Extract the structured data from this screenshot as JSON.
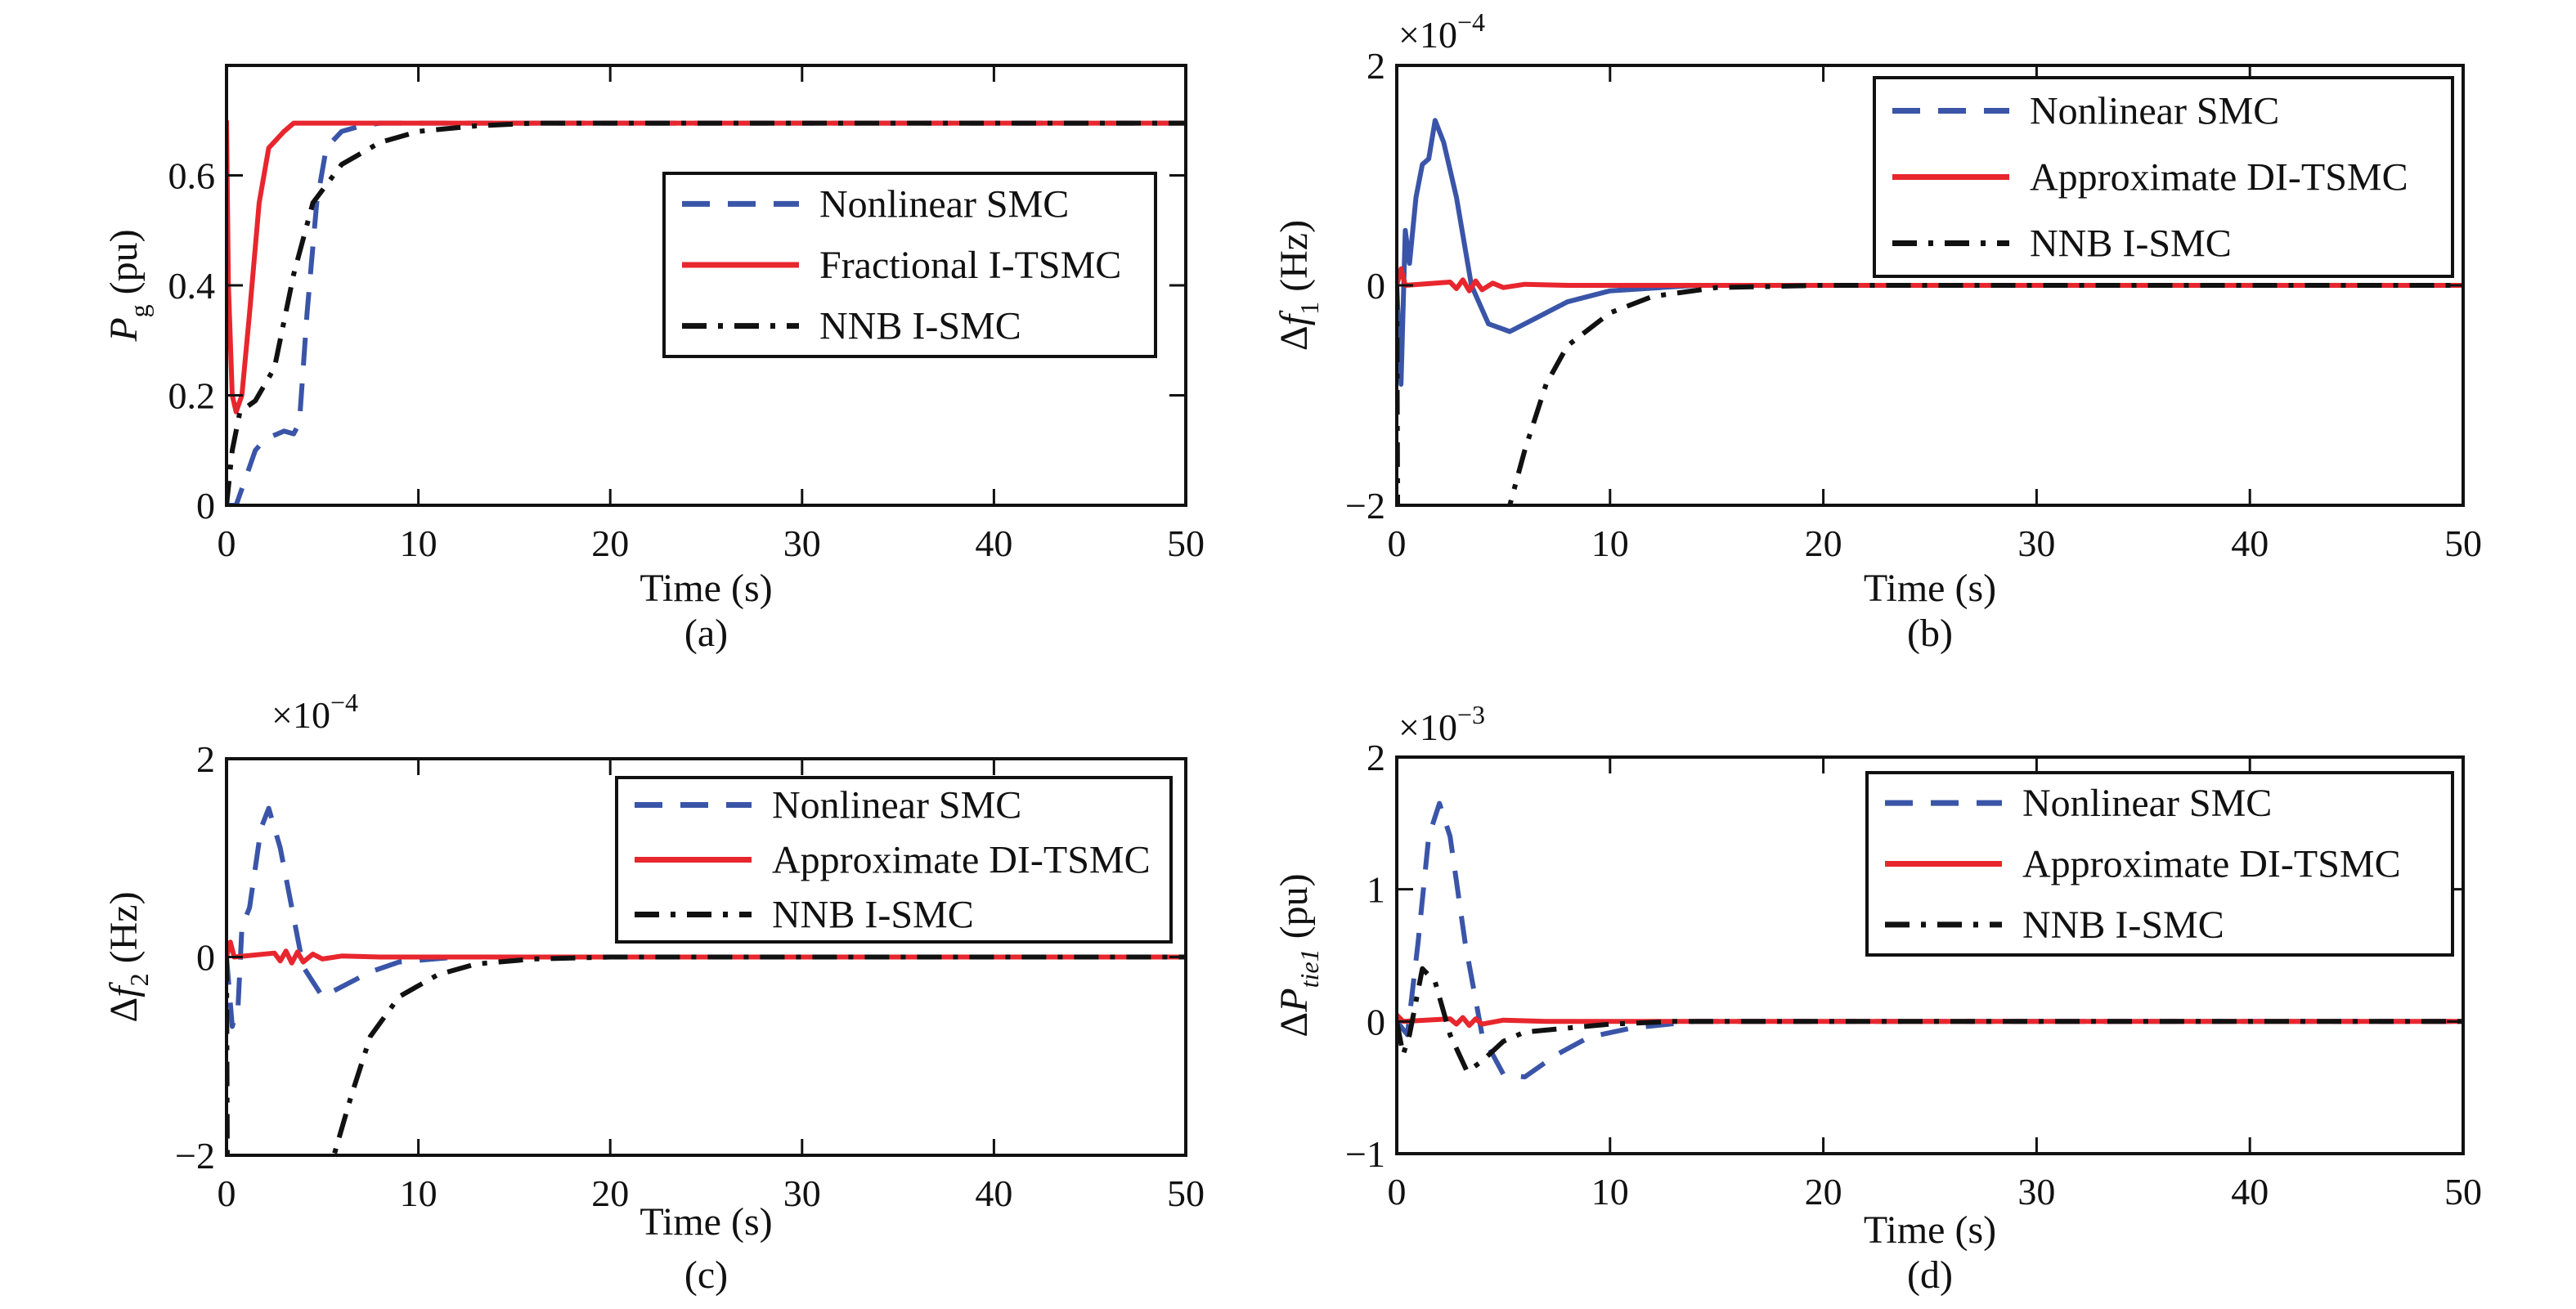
{
  "colors": {
    "nonlinear": "#3a55a8",
    "approx": "#e8262e",
    "nnb": "#111111"
  },
  "chart_data": [
    {
      "id": "a",
      "type": "line",
      "caption": "(a)",
      "xlabel": "Time (s)",
      "ylabel": {
        "base": "P",
        "sub": "g",
        "unit": " (pu)",
        "prefix": ""
      },
      "exponent": null,
      "xlim": [
        0,
        50
      ],
      "ylim": [
        0,
        0.8
      ],
      "xticks": [
        0,
        10,
        20,
        30,
        40,
        50
      ],
      "yticks": [
        0,
        0.2,
        0.4,
        0.6
      ],
      "legend": "top-right",
      "series": [
        {
          "name": "Nonlinear SMC",
          "style": "dashed",
          "color_key": "nonlinear",
          "points": [
            [
              0,
              0
            ],
            [
              0.5,
              0
            ],
            [
              1,
              0.05
            ],
            [
              1.5,
              0.1
            ],
            [
              2,
              0.12
            ],
            [
              3,
              0.135
            ],
            [
              3.5,
              0.13
            ],
            [
              3.8,
              0.15
            ],
            [
              4.2,
              0.35
            ],
            [
              4.7,
              0.55
            ],
            [
              5.2,
              0.65
            ],
            [
              6,
              0.68
            ],
            [
              7,
              0.69
            ],
            [
              8,
              0.695
            ],
            [
              50,
              0.695
            ]
          ]
        },
        {
          "name": "Fractional I-TSMC",
          "style": "solid",
          "color_key": "approx",
          "points": [
            [
              0,
              0.7
            ],
            [
              0.1,
              0.4
            ],
            [
              0.3,
              0.2
            ],
            [
              0.5,
              0.17
            ],
            [
              0.8,
              0.2
            ],
            [
              1.2,
              0.35
            ],
            [
              1.7,
              0.55
            ],
            [
              2.2,
              0.65
            ],
            [
              3,
              0.68
            ],
            [
              3.5,
              0.695
            ],
            [
              50,
              0.695
            ]
          ]
        },
        {
          "name": "NNB I-SMC",
          "style": "dashdot",
          "color_key": "nnb",
          "points": [
            [
              0,
              0
            ],
            [
              0.3,
              0.1
            ],
            [
              0.7,
              0.17
            ],
            [
              1.5,
              0.19
            ],
            [
              2.5,
              0.25
            ],
            [
              3.5,
              0.42
            ],
            [
              4.5,
              0.55
            ],
            [
              6,
              0.62
            ],
            [
              8,
              0.66
            ],
            [
              10,
              0.68
            ],
            [
              13,
              0.69
            ],
            [
              16,
              0.695
            ],
            [
              50,
              0.695
            ]
          ]
        }
      ]
    },
    {
      "id": "b",
      "type": "line",
      "caption": "(b)",
      "xlabel": "Time (s)",
      "ylabel": {
        "base": "f",
        "sub": "1",
        "unit": " (Hz)",
        "prefix": "Δ"
      },
      "exponent": {
        "base": "×10",
        "power": "−4"
      },
      "xlim": [
        0,
        50
      ],
      "ylim": [
        -2,
        2
      ],
      "xticks": [
        0,
        10,
        20,
        30,
        40,
        50
      ],
      "yticks": [
        -2,
        0,
        2
      ],
      "legend": "top-right",
      "series": [
        {
          "name": "Nonlinear SMC",
          "style": "solid",
          "color_key": "nonlinear",
          "points": [
            [
              0,
              0
            ],
            [
              0.2,
              -0.9
            ],
            [
              0.4,
              0.5
            ],
            [
              0.6,
              0.2
            ],
            [
              0.9,
              0.8
            ],
            [
              1.2,
              1.1
            ],
            [
              1.5,
              1.15
            ],
            [
              1.8,
              1.5
            ],
            [
              2.2,
              1.3
            ],
            [
              2.8,
              0.8
            ],
            [
              3.5,
              0
            ],
            [
              4.3,
              -0.35
            ],
            [
              5.3,
              -0.42
            ],
            [
              6.5,
              -0.3
            ],
            [
              8,
              -0.15
            ],
            [
              10,
              -0.05
            ],
            [
              14,
              0
            ],
            [
              50,
              0
            ]
          ]
        },
        {
          "name": "Approximate DI-TSMC",
          "style": "solid",
          "color_key": "approx",
          "points": [
            [
              0,
              0
            ],
            [
              0.2,
              0.15
            ],
            [
              0.4,
              0
            ],
            [
              2.5,
              0.03
            ],
            [
              2.8,
              -0.03
            ],
            [
              3.1,
              0.05
            ],
            [
              3.4,
              -0.05
            ],
            [
              3.7,
              0.04
            ],
            [
              4,
              -0.04
            ],
            [
              4.5,
              0.02
            ],
            [
              5,
              -0.02
            ],
            [
              6,
              0.01
            ],
            [
              8,
              0
            ],
            [
              50,
              0
            ]
          ]
        },
        {
          "name": "NNB I-SMC",
          "style": "dashdot",
          "color_key": "nnb",
          "points": [
            [
              0,
              0
            ],
            [
              0.05,
              -2.5
            ],
            [
              5.1,
              -2.5
            ],
            [
              5.3,
              -2
            ],
            [
              6,
              -1.5
            ],
            [
              7,
              -0.9
            ],
            [
              8,
              -0.55
            ],
            [
              10,
              -0.25
            ],
            [
              12,
              -0.1
            ],
            [
              15,
              -0.02
            ],
            [
              20,
              0
            ],
            [
              50,
              0
            ]
          ]
        }
      ]
    },
    {
      "id": "c",
      "type": "line",
      "caption": "(c)",
      "xlabel": "Time (s)",
      "ylabel": {
        "base": "f",
        "sub": "2",
        "unit": " (Hz)",
        "prefix": "Δ"
      },
      "exponent": {
        "base": "×10",
        "power": "−4"
      },
      "xlim": [
        0,
        50
      ],
      "ylim": [
        -2,
        2
      ],
      "xticks": [
        0,
        10,
        20,
        30,
        40,
        50
      ],
      "yticks": [
        -2,
        0,
        2
      ],
      "legend": "top-right",
      "series": [
        {
          "name": "Nonlinear SMC",
          "style": "dashed",
          "color_key": "nonlinear",
          "points": [
            [
              0,
              0
            ],
            [
              0.3,
              -0.7
            ],
            [
              0.6,
              -0.5
            ],
            [
              0.8,
              0.3
            ],
            [
              1.2,
              0.5
            ],
            [
              1.8,
              1.3
            ],
            [
              2.2,
              1.5
            ],
            [
              2.8,
              1.1
            ],
            [
              3.5,
              0.4
            ],
            [
              4,
              -0.1
            ],
            [
              5,
              -0.4
            ],
            [
              6,
              -0.3
            ],
            [
              7.5,
              -0.15
            ],
            [
              9,
              -0.05
            ],
            [
              12,
              0
            ],
            [
              50,
              0
            ]
          ]
        },
        {
          "name": "Approximate DI-TSMC",
          "style": "solid",
          "color_key": "approx",
          "points": [
            [
              0,
              0
            ],
            [
              0.2,
              0.15
            ],
            [
              0.4,
              0
            ],
            [
              2.5,
              0.04
            ],
            [
              2.8,
              -0.04
            ],
            [
              3.1,
              0.06
            ],
            [
              3.4,
              -0.06
            ],
            [
              3.7,
              0.05
            ],
            [
              4,
              -0.05
            ],
            [
              4.5,
              0.03
            ],
            [
              5,
              -0.02
            ],
            [
              6,
              0.01
            ],
            [
              8,
              0
            ],
            [
              50,
              0
            ]
          ]
        },
        {
          "name": "NNB I-SMC",
          "style": "dashdot",
          "color_key": "nnb",
          "points": [
            [
              0,
              0
            ],
            [
              0.05,
              -2.5
            ],
            [
              5.4,
              -2.5
            ],
            [
              5.6,
              -2
            ],
            [
              6.5,
              -1.4
            ],
            [
              7.5,
              -0.8
            ],
            [
              9,
              -0.4
            ],
            [
              11,
              -0.18
            ],
            [
              13,
              -0.07
            ],
            [
              16,
              -0.02
            ],
            [
              20,
              0
            ],
            [
              50,
              0
            ]
          ]
        }
      ]
    },
    {
      "id": "d",
      "type": "line",
      "caption": "(d)",
      "xlabel": "Time (s)",
      "ylabel": {
        "base": "P",
        "sub": "tie1",
        "unit": " (pu)",
        "prefix": "Δ"
      },
      "exponent": {
        "base": "×10",
        "power": "−3"
      },
      "xlim": [
        0,
        50
      ],
      "ylim": [
        -1,
        2
      ],
      "xticks": [
        0,
        10,
        20,
        30,
        40,
        50
      ],
      "yticks": [
        -1,
        0,
        1,
        2
      ],
      "legend": "top-right",
      "series": [
        {
          "name": "Nonlinear SMC",
          "style": "dashed",
          "color_key": "nonlinear",
          "points": [
            [
              0,
              0
            ],
            [
              0.5,
              -0.1
            ],
            [
              1,
              0.6
            ],
            [
              1.5,
              1.4
            ],
            [
              2,
              1.65
            ],
            [
              2.5,
              1.4
            ],
            [
              3.2,
              0.6
            ],
            [
              4,
              -0.1
            ],
            [
              5,
              -0.4
            ],
            [
              6,
              -0.42
            ],
            [
              7.5,
              -0.25
            ],
            [
              9,
              -0.12
            ],
            [
              11,
              -0.05
            ],
            [
              14,
              0
            ],
            [
              50,
              0
            ]
          ]
        },
        {
          "name": "Approximate DI-TSMC",
          "style": "solid",
          "color_key": "approx",
          "points": [
            [
              0,
              0.05
            ],
            [
              0.3,
              0
            ],
            [
              2.5,
              0.02
            ],
            [
              2.8,
              -0.02
            ],
            [
              3.1,
              0.03
            ],
            [
              3.4,
              -0.03
            ],
            [
              3.7,
              0.02
            ],
            [
              4,
              -0.02
            ],
            [
              5,
              0.01
            ],
            [
              7,
              0
            ],
            [
              50,
              0
            ]
          ]
        },
        {
          "name": "NNB I-SMC",
          "style": "dashdot",
          "color_key": "nnb",
          "points": [
            [
              0,
              0
            ],
            [
              0.3,
              -0.25
            ],
            [
              0.6,
              -0.1
            ],
            [
              1.2,
              0.4
            ],
            [
              1.8,
              0.3
            ],
            [
              2.5,
              -0.1
            ],
            [
              3.3,
              -0.38
            ],
            [
              4,
              -0.3
            ],
            [
              5,
              -0.15
            ],
            [
              6,
              -0.08
            ],
            [
              8,
              -0.05
            ],
            [
              10,
              -0.02
            ],
            [
              13,
              0
            ],
            [
              50,
              0
            ]
          ]
        }
      ]
    }
  ]
}
